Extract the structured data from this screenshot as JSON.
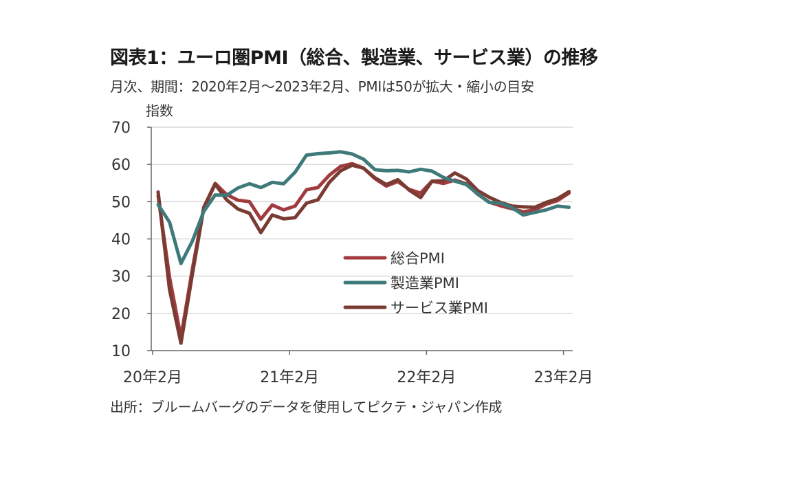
{
  "title": "図表1：ユーロ圏PMI（総合、製造業、サービス業）の推移",
  "subtitle": "月次、期間：2020年2月～2023年2月、PMIは50が拡大・縮小の目安",
  "source": "出所：ブルームバーグのデータを使用してピクテ・ジャパン作成",
  "chart_data": {
    "type": "line",
    "ylabel": "指数",
    "xlabel": "",
    "ylim": [
      10,
      70
    ],
    "yticks": [
      70,
      60,
      50,
      40,
      30,
      20,
      10
    ],
    "xticks": [
      {
        "label": "20年2月",
        "index": 0
      },
      {
        "label": "21年2月",
        "index": 12
      },
      {
        "label": "22年2月",
        "index": 24
      },
      {
        "label": "23年2月",
        "index": 36
      }
    ],
    "grid": "horizontal",
    "legend_position": "center-right",
    "x": [
      "2020-02",
      "2020-03",
      "2020-04",
      "2020-05",
      "2020-06",
      "2020-07",
      "2020-08",
      "2020-09",
      "2020-10",
      "2020-11",
      "2020-12",
      "2021-01",
      "2021-02",
      "2021-03",
      "2021-04",
      "2021-05",
      "2021-06",
      "2021-07",
      "2021-08",
      "2021-09",
      "2021-10",
      "2021-11",
      "2021-12",
      "2022-01",
      "2022-02",
      "2022-03",
      "2022-04",
      "2022-05",
      "2022-06",
      "2022-07",
      "2022-08",
      "2022-09",
      "2022-10",
      "2022-11",
      "2022-12",
      "2023-01",
      "2023-02"
    ],
    "series": [
      {
        "name": "総合PMI",
        "color": "#a23b3f",
        "values": [
          51.6,
          29.7,
          13.6,
          31.9,
          48.5,
          54.9,
          51.9,
          50.4,
          50.0,
          45.3,
          49.1,
          47.8,
          48.8,
          53.2,
          53.8,
          57.1,
          59.5,
          60.2,
          59.0,
          56.2,
          54.2,
          55.4,
          53.3,
          52.3,
          55.5,
          54.9,
          55.8,
          54.8,
          52.0,
          49.9,
          48.9,
          48.1,
          47.3,
          47.8,
          49.3,
          50.3,
          52.3
        ]
      },
      {
        "name": "製造業PMI",
        "color": "#3f7a7b",
        "values": [
          49.2,
          44.5,
          33.4,
          39.4,
          47.4,
          51.8,
          51.7,
          53.7,
          54.8,
          53.8,
          55.2,
          54.8,
          57.9,
          62.5,
          62.9,
          63.1,
          63.4,
          62.8,
          61.4,
          58.6,
          58.3,
          58.4,
          58.0,
          58.7,
          58.2,
          56.5,
          55.5,
          54.6,
          52.1,
          49.8,
          49.6,
          48.4,
          46.4,
          47.1,
          47.8,
          48.8,
          48.5
        ]
      },
      {
        "name": "サービス業PMI",
        "color": "#7a3b32",
        "values": [
          52.6,
          26.4,
          12.0,
          30.5,
          48.3,
          54.7,
          50.5,
          48.0,
          46.9,
          41.7,
          46.4,
          45.4,
          45.7,
          49.6,
          50.5,
          55.2,
          58.3,
          59.8,
          59.0,
          56.4,
          54.6,
          55.9,
          53.1,
          51.1,
          55.5,
          55.6,
          57.7,
          56.1,
          53.0,
          51.2,
          49.8,
          48.8,
          48.6,
          48.5,
          49.8,
          50.8,
          52.7
        ]
      }
    ]
  }
}
